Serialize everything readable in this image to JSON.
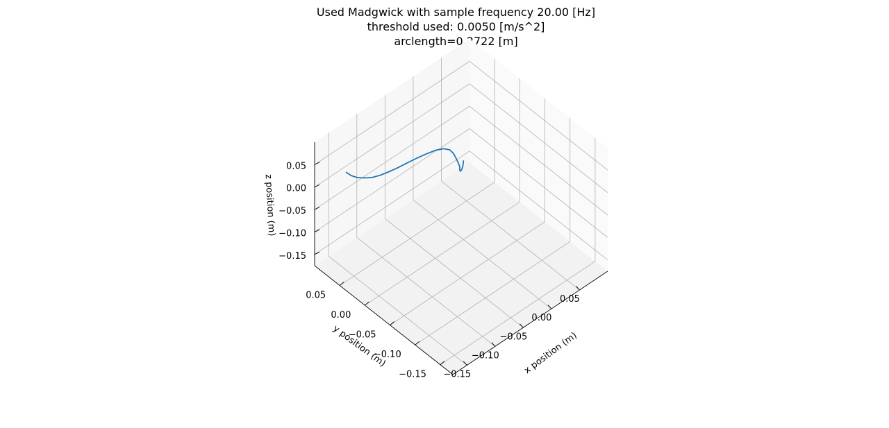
{
  "chart_data": {
    "type": "line",
    "title_lines": [
      "Used Madgwick with sample frequency 20.00 [Hz]",
      "threshold used: 0.0050 [m/s^2]",
      "arclength=0.2722 [m]"
    ],
    "xlabel": "x position (m)",
    "ylabel": "y position (m)",
    "zlabel": "z position (m)",
    "xlim": [
      -0.175,
      0.1
    ],
    "ylim": [
      -0.175,
      0.1
    ],
    "zlim": [
      -0.175,
      0.1
    ],
    "xticks": [
      -0.15,
      -0.1,
      -0.05,
      0.0,
      0.05
    ],
    "xtick_labels": [
      "−0.15",
      "−0.10",
      "−0.05",
      "0.00",
      "0.05"
    ],
    "yticks": [
      -0.15,
      -0.1,
      -0.05,
      0.0,
      0.05
    ],
    "ytick_labels": [
      "−0.15",
      "−0.10",
      "−0.05",
      "0.00",
      "0.05"
    ],
    "zticks": [
      -0.15,
      -0.1,
      -0.05,
      0.0,
      0.05
    ],
    "ztick_labels": [
      "−0.15",
      "−0.10",
      "−0.05",
      "0.00",
      "0.05"
    ],
    "grid": true,
    "line_color": "#1f77b4",
    "pane_colors": [
      "#f2f2f2",
      "#f7f7f7",
      "#fafafa"
    ],
    "series": [
      {
        "x": [
          0.0,
          -0.001,
          -0.002,
          -0.003,
          -0.004,
          -0.003,
          -0.004,
          -0.005,
          -0.007,
          -0.01,
          -0.016,
          -0.025,
          -0.036,
          -0.048,
          -0.06,
          -0.072,
          -0.083,
          -0.094,
          -0.104,
          -0.113,
          -0.122,
          -0.128,
          -0.132
        ],
        "y": [
          0.0,
          0.0,
          0.001,
          0.002,
          0.003,
          0.004,
          0.006,
          0.009,
          0.012,
          0.016,
          0.021,
          0.027,
          0.033,
          0.039,
          0.045,
          0.05,
          0.055,
          0.06,
          0.065,
          0.07,
          0.075,
          0.08,
          0.085
        ],
        "z": [
          0.0,
          -0.01,
          -0.018,
          -0.022,
          -0.02,
          -0.013,
          -0.006,
          0.002,
          0.012,
          0.019,
          0.022,
          0.021,
          0.017,
          0.012,
          0.006,
          0.001,
          -0.003,
          -0.006,
          -0.007,
          -0.005,
          -0.001,
          0.004,
          0.01
        ]
      }
    ]
  }
}
